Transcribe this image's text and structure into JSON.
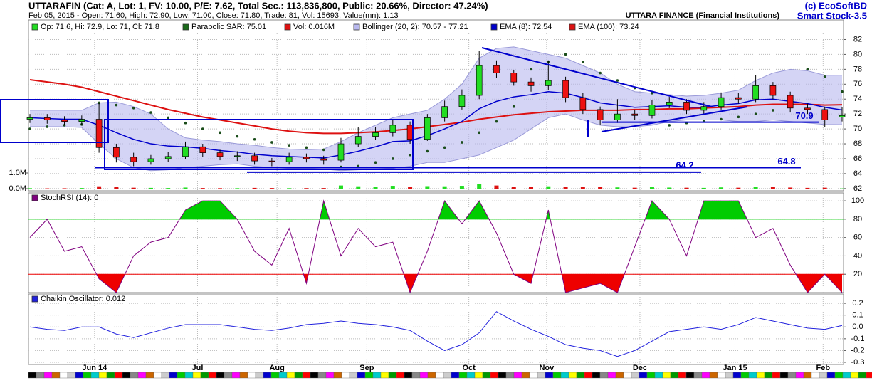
{
  "header": {
    "title": "UTTARAFIN (Cat: A, Lot: 1, FV: 10.00, P/E: 7.62, Total Sec.: 113,836,800, Public: 20.66%, Director: 47.24%)",
    "subtitle": "Feb 05, 2015 - Open: 71.60, High: 72.90, Low: 71.00, Close: 71.80, Trade: 81, Vol: 15693, Value(mn): 1.13",
    "company": "UTTARA FINANCE (Financial Institutions)",
    "copyright": "(c) EcoSoftBD",
    "product": "Smart Stock-3.5"
  },
  "chart_data": [
    {
      "type": "candlestick",
      "xlim": [
        0,
        47
      ],
      "xticks": [
        {
          "value": 3.74,
          "label": "Jun 14"
        },
        {
          "value": 9.7,
          "label": "Jul"
        },
        {
          "value": 14.3,
          "label": "Aug"
        },
        {
          "value": 19.5,
          "label": "Sep"
        },
        {
          "value": 25.4,
          "label": "Oct"
        },
        {
          "value": 29.9,
          "label": "Nov"
        },
        {
          "value": 35.3,
          "label": "Dec"
        },
        {
          "value": 40.8,
          "label": "Jan 15"
        },
        {
          "value": 45.9,
          "label": "Feb"
        }
      ],
      "ylim": [
        61.7,
        83
      ],
      "yticks": [
        62,
        64,
        66,
        68,
        70,
        72,
        74,
        76,
        78,
        80,
        82
      ],
      "y2lim": [
        -136364,
        10000000
      ],
      "y2ticks": [
        {
          "value": 0,
          "label": "0.0M"
        },
        {
          "value": 1000000,
          "label": "1.0M"
        }
      ],
      "grid": true,
      "series": [
        {
          "name": "Op: 71.6, Hi: 72.9, Lo: 71, Cl: 71.8",
          "color": "#22dd22",
          "down_color": "#ee1111",
          "open": [
            71.3,
            71.5,
            71.2,
            71.0,
            71.3,
            67.5,
            66.2,
            65.6,
            66.0,
            66.3,
            67.6,
            66.8,
            66.3,
            66.4,
            65.7,
            65.6,
            66.2,
            66.0,
            65.8,
            68.0,
            69.0,
            69.5,
            70.5,
            68.6,
            71.5,
            73.0,
            74.5,
            78.5,
            77.5,
            76.3,
            75.8,
            76.5,
            74.2,
            72.6,
            71.2,
            72.0,
            71.8,
            73.2,
            73.6,
            72.5,
            73.0,
            74.2,
            74.0,
            75.8,
            74.5,
            72.8,
            72.6,
            71.6
          ],
          "high": [
            72.0,
            72.0,
            71.7,
            71.8,
            73.5,
            68.0,
            66.8,
            66.5,
            66.9,
            68.3,
            68.0,
            67.2,
            67.0,
            66.8,
            66.1,
            66.8,
            66.7,
            66.4,
            68.8,
            70.2,
            70.3,
            71.2,
            71.0,
            72.0,
            73.8,
            75.3,
            80.5,
            79.2,
            77.9,
            76.9,
            79.2,
            77.0,
            74.8,
            73.0,
            74.0,
            72.6,
            73.9,
            74.3,
            74.0,
            73.6,
            74.9,
            74.8,
            77.2,
            76.3,
            75.0,
            73.4,
            73.0,
            72.9
          ],
          "low": [
            70.8,
            70.7,
            70.5,
            70.5,
            66.8,
            65.5,
            65.0,
            65.2,
            65.6,
            66.0,
            66.2,
            65.8,
            65.7,
            65.2,
            65.0,
            65.2,
            65.5,
            65.2,
            65.5,
            67.6,
            68.5,
            69.0,
            68.0,
            68.4,
            71.0,
            72.6,
            74.0,
            76.8,
            75.8,
            75.0,
            75.2,
            73.6,
            72.0,
            70.5,
            70.8,
            71.2,
            71.4,
            72.8,
            72.0,
            72.0,
            72.6,
            73.4,
            73.6,
            74.0,
            72.2,
            72.0,
            70.2,
            71.0
          ],
          "close": [
            71.5,
            71.2,
            71.0,
            71.3,
            67.5,
            66.2,
            65.6,
            66.0,
            66.3,
            67.6,
            66.8,
            66.3,
            66.4,
            65.7,
            65.6,
            66.2,
            66.0,
            65.8,
            68.0,
            69.0,
            69.5,
            70.5,
            68.6,
            71.5,
            73.0,
            74.5,
            78.5,
            77.5,
            76.3,
            75.8,
            76.5,
            74.2,
            72.6,
            71.2,
            72.0,
            71.8,
            73.2,
            73.6,
            72.5,
            73.0,
            74.2,
            74.0,
            75.8,
            74.5,
            72.8,
            72.6,
            71.2,
            71.8
          ]
        },
        {
          "name": "Parabolic SAR: 75.01",
          "color": "#1a4d1a",
          "values": [
            70.0,
            70.3,
            70.5,
            70.6,
            73.5,
            73.2,
            72.8,
            72.2,
            71.5,
            70.8,
            70.0,
            69.5,
            69.0,
            68.6,
            68.2,
            67.8,
            67.5,
            67.2,
            64.9,
            65.0,
            65.5,
            66.0,
            66.5,
            67.0,
            67.5,
            68.2,
            69.5,
            71.0,
            73.0,
            78.0,
            79.0,
            80.0,
            79.0,
            77.5,
            76.5,
            75.5,
            74.8,
            70.5,
            70.8,
            71.0,
            71.3,
            71.6,
            72.0,
            72.5,
            73.0,
            78.0,
            77.0,
            75.01
          ]
        },
        {
          "name": "Vol: 0.016M",
          "color": "#dd1111",
          "axis": "y2",
          "values": [
            30000,
            20000,
            25000,
            40000,
            150000,
            120000,
            60000,
            50000,
            40000,
            70000,
            40000,
            30000,
            30000,
            50000,
            40000,
            30000,
            35000,
            40000,
            200000,
            150000,
            120000,
            180000,
            90000,
            160000,
            150000,
            180000,
            300000,
            200000,
            120000,
            100000,
            150000,
            130000,
            90000,
            110000,
            80000,
            60000,
            90000,
            70000,
            60000,
            50000,
            80000,
            60000,
            120000,
            90000,
            70000,
            50000,
            60000,
            15693
          ]
        },
        {
          "name": "Bollinger (20, 2): 70.57 - 77.21",
          "color": "#b8b8ee",
          "upper": [
            72.5,
            72.5,
            72.5,
            72.5,
            73.5,
            73.6,
            73.0,
            72.0,
            70.0,
            68.8,
            68.5,
            68.3,
            68.0,
            67.8,
            67.5,
            67.3,
            67.2,
            67.3,
            68.3,
            69.5,
            70.5,
            71.5,
            72.0,
            72.5,
            74.0,
            76.0,
            79.5,
            80.8,
            81.0,
            80.5,
            80.0,
            79.5,
            78.5,
            77.5,
            76.0,
            75.0,
            74.8,
            74.6,
            74.4,
            74.5,
            74.8,
            75.2,
            76.5,
            77.5,
            78.0,
            77.8,
            77.2,
            77.21
          ],
          "lower": [
            70.3,
            70.3,
            70.3,
            70.2,
            68.0,
            66.0,
            64.8,
            64.4,
            64.5,
            64.8,
            65.0,
            65.2,
            65.3,
            65.0,
            64.8,
            64.7,
            64.7,
            64.6,
            64.4,
            64.5,
            64.6,
            64.7,
            65.0,
            65.5,
            65.5,
            66.0,
            66.5,
            67.5,
            68.5,
            70.0,
            71.5,
            72.0,
            71.2,
            70.5,
            70.3,
            70.3,
            70.5,
            71.0,
            71.2,
            71.2,
            71.2,
            71.0,
            71.0,
            71.2,
            71.0,
            70.8,
            70.6,
            70.57
          ]
        },
        {
          "name": "EMA (8): 72.54",
          "color": "#0000cc",
          "values": [
            71.5,
            71.4,
            71.3,
            71.3,
            70.5,
            69.5,
            68.6,
            68.0,
            67.7,
            67.6,
            67.4,
            67.1,
            66.9,
            66.6,
            66.4,
            66.3,
            66.2,
            66.1,
            66.5,
            67.0,
            67.6,
            68.3,
            68.4,
            69.1,
            70.0,
            71.0,
            72.7,
            73.7,
            74.3,
            74.6,
            75.0,
            74.8,
            74.2,
            73.5,
            73.2,
            72.9,
            73.0,
            73.1,
            72.9,
            72.9,
            73.2,
            73.4,
            73.9,
            74.0,
            73.7,
            73.4,
            72.9,
            72.54
          ]
        },
        {
          "name": "EMA (100): 73.24",
          "color": "#dd1111",
          "values": [
            76.6,
            76.3,
            76.0,
            75.6,
            75.0,
            74.4,
            73.8,
            73.2,
            72.6,
            72.1,
            71.6,
            71.2,
            70.8,
            70.4,
            70.0,
            69.7,
            69.5,
            69.4,
            69.4,
            69.5,
            69.6,
            69.8,
            70.0,
            70.3,
            70.6,
            70.9,
            71.3,
            71.6,
            71.9,
            72.1,
            72.3,
            72.4,
            72.5,
            72.5,
            72.5,
            72.6,
            72.6,
            72.7,
            72.7,
            72.8,
            72.9,
            73.0,
            73.2,
            73.3,
            73.3,
            73.3,
            73.2,
            73.24
          ]
        }
      ],
      "annotations": [
        70.9,
        64.2,
        64.8
      ]
    },
    {
      "type": "line",
      "ylim": [
        0,
        108.6
      ],
      "yticks": [
        20,
        40,
        60,
        80,
        100
      ],
      "hlines": [
        {
          "value": 80,
          "color": "#00cc00"
        },
        {
          "value": 20,
          "color": "#ee0000"
        }
      ],
      "series": [
        {
          "name": "StochRSI (14): 0",
          "color": "#800080",
          "values": [
            60,
            80,
            45,
            50,
            15,
            0,
            40,
            55,
            60,
            90,
            100,
            100,
            80,
            45,
            30,
            70,
            10,
            100,
            40,
            70,
            50,
            55,
            0,
            45,
            100,
            75,
            100,
            65,
            20,
            10,
            90,
            0,
            5,
            10,
            0,
            50,
            100,
            80,
            40,
            100,
            100,
            100,
            60,
            70,
            30,
            0,
            20,
            0
          ]
        }
      ]
    },
    {
      "type": "line",
      "ylim": [
        -0.318,
        0.279
      ],
      "yticks": [
        0.2,
        0.1,
        {
          "value": 0,
          "label": "0.0"
        },
        -0.1,
        -0.2,
        -0.3
      ],
      "series": [
        {
          "name": "Chaikin Oscillator: 0.012",
          "color": "#2020dd",
          "values": [
            0,
            -0.02,
            -0.03,
            0,
            0,
            -0.06,
            -0.09,
            -0.05,
            -0.01,
            0.02,
            0.02,
            0.02,
            0,
            -0.02,
            -0.03,
            -0.01,
            0.02,
            0.03,
            0.05,
            0.03,
            0.02,
            0,
            -0.03,
            -0.12,
            -0.2,
            -0.15,
            -0.05,
            0.13,
            0.05,
            -0.02,
            -0.08,
            -0.15,
            -0.18,
            -0.2,
            -0.25,
            -0.2,
            -0.12,
            -0.04,
            -0.02,
            0,
            -0.02,
            0.02,
            0.08,
            0.05,
            0.02,
            -0.01,
            -0.02,
            0.012
          ]
        }
      ]
    }
  ]
}
